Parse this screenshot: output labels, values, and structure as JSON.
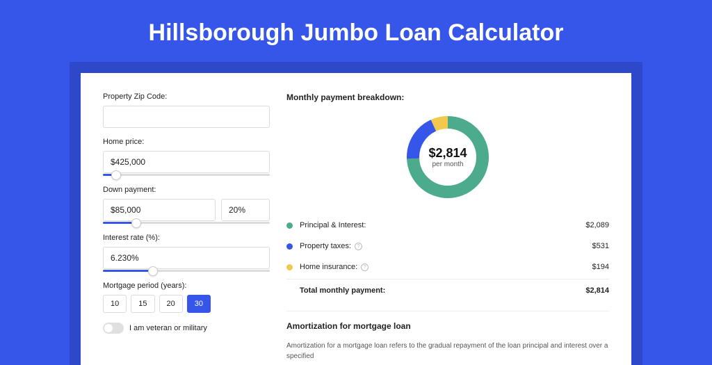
{
  "title": "Hillsborough Jumbo Loan Calculator",
  "colors": {
    "page_bg": "#3556e8",
    "wrapper_bg": "#2d49c9",
    "card_bg": "#ffffff",
    "text": "#222222",
    "accent": "#3556e8"
  },
  "form": {
    "zip": {
      "label": "Property Zip Code:",
      "value": ""
    },
    "home_price": {
      "label": "Home price:",
      "value": "$425,000",
      "slider_pct": 8
    },
    "down_payment": {
      "label": "Down payment:",
      "amount": "$85,000",
      "percent": "20%",
      "slider_pct": 20
    },
    "interest": {
      "label": "Interest rate (%):",
      "value": "6.230%",
      "slider_pct": 30
    },
    "period": {
      "label": "Mortgage period (years):",
      "options": [
        "10",
        "15",
        "20",
        "30"
      ],
      "selected": "30"
    },
    "veteran": {
      "label": "I am veteran or military",
      "checked": false
    }
  },
  "breakdown": {
    "title": "Monthly payment breakdown:",
    "center_amount": "$2,814",
    "center_sub": "per month",
    "donut": {
      "segments": [
        {
          "key": "principal_interest",
          "color": "#4bab8c",
          "fraction": 0.742
        },
        {
          "key": "property_taxes",
          "color": "#3556e8",
          "fraction": 0.189
        },
        {
          "key": "home_insurance",
          "color": "#f2c94c",
          "fraction": 0.069
        }
      ],
      "stroke_width": 18,
      "radius": 50
    },
    "items": [
      {
        "label": "Principal & Interest:",
        "value": "$2,089",
        "color": "#4bab8c",
        "info": false
      },
      {
        "label": "Property taxes:",
        "value": "$531",
        "color": "#3556e8",
        "info": true
      },
      {
        "label": "Home insurance:",
        "value": "$194",
        "color": "#f2c94c",
        "info": true
      }
    ],
    "total": {
      "label": "Total monthly payment:",
      "value": "$2,814"
    }
  },
  "amortization": {
    "title": "Amortization for mortgage loan",
    "text": "Amortization for a mortgage loan refers to the gradual repayment of the loan principal and interest over a specified"
  }
}
